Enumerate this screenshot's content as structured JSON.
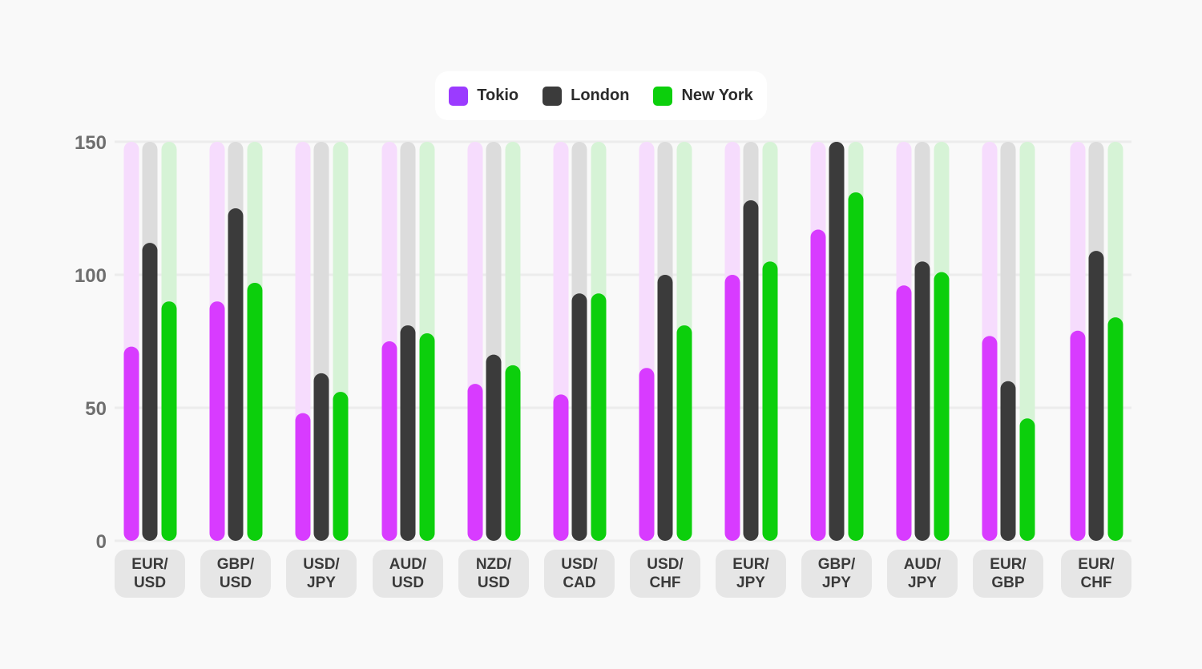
{
  "chart_data": {
    "type": "bar",
    "categories": [
      "EUR/\nUSD",
      "GBP/\nUSD",
      "USD/\nJPY",
      "AUD/\nUSD",
      "NZD/\nUSD",
      "USD/\nCAD",
      "USD/\nCHF",
      "EUR/\nJPY",
      "GBP/\nJPY",
      "AUD/\nJPY",
      "EUR/\nGBP",
      "EUR/\nCHF"
    ],
    "series": [
      {
        "name": "Tokio",
        "color": "#d83bff",
        "legend_color": "#9b3bff",
        "track_color": "#f6dcfd",
        "values": [
          73,
          90,
          48,
          75,
          59,
          55,
          65,
          100,
          117,
          96,
          77,
          79
        ]
      },
      {
        "name": "London",
        "color": "#3b3b3b",
        "legend_color": "#3b3b3b",
        "track_color": "#dcdcdc",
        "values": [
          112,
          125,
          63,
          81,
          70,
          93,
          100,
          128,
          150,
          105,
          60,
          109
        ]
      },
      {
        "name": "New York",
        "color": "#0ccf0c",
        "legend_color": "#0ccf0c",
        "track_color": "#d6f3d6",
        "values": [
          90,
          97,
          56,
          78,
          66,
          93,
          81,
          105,
          131,
          101,
          46,
          84
        ]
      }
    ],
    "yticks": [
      "0",
      "50",
      "100",
      "150"
    ],
    "ylim": [
      0,
      150
    ],
    "grid": true,
    "legend_position": "top-center",
    "title": "",
    "xlabel": "",
    "ylabel": ""
  }
}
